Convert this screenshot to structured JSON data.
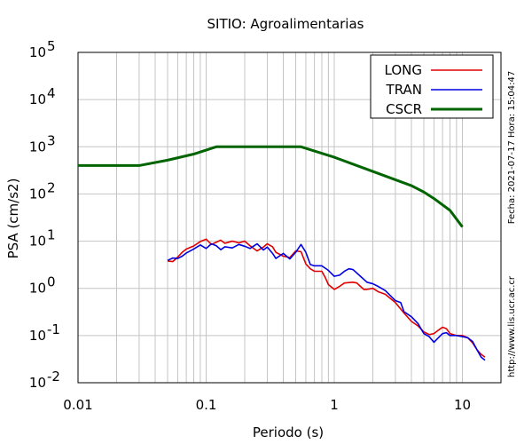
{
  "chart_data": {
    "type": "line",
    "title": "SITIO: Agroalimentarias",
    "xlabel": "Periodo (s)",
    "ylabel": "PSA (cm/s2)",
    "x_scale": "log",
    "y_scale": "log",
    "xlim": [
      0.01,
      20
    ],
    "ylim": [
      0.01,
      100000
    ],
    "x_ticks": [
      0.01,
      0.1,
      1,
      10
    ],
    "x_tick_labels": [
      "0.01",
      "0.1",
      "1",
      "10"
    ],
    "y_ticks": [
      0.01,
      0.1,
      1,
      10,
      100,
      1000,
      10000,
      100000
    ],
    "y_tick_labels": [
      {
        "base": "10",
        "exp": "-2"
      },
      {
        "base": "10",
        "exp": "-1"
      },
      {
        "base": "10",
        "exp": "0"
      },
      {
        "base": "10",
        "exp": "1"
      },
      {
        "base": "10",
        "exp": "2"
      },
      {
        "base": "10",
        "exp": "3"
      },
      {
        "base": "10",
        "exp": "4"
      },
      {
        "base": "10",
        "exp": "5"
      }
    ],
    "grid": true,
    "legend_position": "top-right",
    "series": [
      {
        "name": "LONG",
        "color": "#e00000",
        "points": [
          [
            0.05,
            3.8
          ],
          [
            0.055,
            3.7
          ],
          [
            0.06,
            4.6
          ],
          [
            0.065,
            5.8
          ],
          [
            0.07,
            6.8
          ],
          [
            0.08,
            7.9
          ],
          [
            0.09,
            9.8
          ],
          [
            0.1,
            11.0
          ],
          [
            0.11,
            8.5
          ],
          [
            0.12,
            9.5
          ],
          [
            0.13,
            10.5
          ],
          [
            0.14,
            9.0
          ],
          [
            0.16,
            10.0
          ],
          [
            0.18,
            9.2
          ],
          [
            0.2,
            10.0
          ],
          [
            0.22,
            8.0
          ],
          [
            0.25,
            6.2
          ],
          [
            0.28,
            7.5
          ],
          [
            0.3,
            8.8
          ],
          [
            0.33,
            7.6
          ],
          [
            0.35,
            5.8
          ],
          [
            0.4,
            4.8
          ],
          [
            0.45,
            4.5
          ],
          [
            0.5,
            6.2
          ],
          [
            0.55,
            6.0
          ],
          [
            0.6,
            3.3
          ],
          [
            0.65,
            2.6
          ],
          [
            0.7,
            2.3
          ],
          [
            0.8,
            2.3
          ],
          [
            0.85,
            1.7
          ],
          [
            0.9,
            1.2
          ],
          [
            1.0,
            0.95
          ],
          [
            1.1,
            1.1
          ],
          [
            1.2,
            1.3
          ],
          [
            1.4,
            1.35
          ],
          [
            1.5,
            1.3
          ],
          [
            1.6,
            1.1
          ],
          [
            1.7,
            0.95
          ],
          [
            1.8,
            0.95
          ],
          [
            2.0,
            1.0
          ],
          [
            2.2,
            0.85
          ],
          [
            2.5,
            0.75
          ],
          [
            3.0,
            0.5
          ],
          [
            3.5,
            0.3
          ],
          [
            4.0,
            0.2
          ],
          [
            4.5,
            0.16
          ],
          [
            5.0,
            0.12
          ],
          [
            5.5,
            0.105
          ],
          [
            6.0,
            0.11
          ],
          [
            6.5,
            0.13
          ],
          [
            7.0,
            0.15
          ],
          [
            7.5,
            0.14
          ],
          [
            8.0,
            0.11
          ],
          [
            9.0,
            0.1
          ],
          [
            10.0,
            0.1
          ],
          [
            11.0,
            0.09
          ],
          [
            12.0,
            0.07
          ],
          [
            13.0,
            0.05
          ],
          [
            14.0,
            0.04
          ],
          [
            15.0,
            0.035
          ]
        ]
      },
      {
        "name": "TRAN",
        "color": "#0000e0",
        "points": [
          [
            0.05,
            3.9
          ],
          [
            0.055,
            4.4
          ],
          [
            0.06,
            4.3
          ],
          [
            0.065,
            4.8
          ],
          [
            0.07,
            5.6
          ],
          [
            0.08,
            6.8
          ],
          [
            0.09,
            8.3
          ],
          [
            0.1,
            7.0
          ],
          [
            0.11,
            8.8
          ],
          [
            0.12,
            8.0
          ],
          [
            0.13,
            6.6
          ],
          [
            0.14,
            7.6
          ],
          [
            0.16,
            7.2
          ],
          [
            0.18,
            8.5
          ],
          [
            0.2,
            7.8
          ],
          [
            0.22,
            7.0
          ],
          [
            0.25,
            8.8
          ],
          [
            0.28,
            6.5
          ],
          [
            0.3,
            7.5
          ],
          [
            0.33,
            5.5
          ],
          [
            0.35,
            4.3
          ],
          [
            0.4,
            5.5
          ],
          [
            0.45,
            4.2
          ],
          [
            0.5,
            5.8
          ],
          [
            0.55,
            8.5
          ],
          [
            0.6,
            5.8
          ],
          [
            0.65,
            3.2
          ],
          [
            0.7,
            3.0
          ],
          [
            0.8,
            3.0
          ],
          [
            0.9,
            2.4
          ],
          [
            1.0,
            1.8
          ],
          [
            1.1,
            1.9
          ],
          [
            1.2,
            2.3
          ],
          [
            1.3,
            2.6
          ],
          [
            1.4,
            2.5
          ],
          [
            1.6,
            1.8
          ],
          [
            1.8,
            1.35
          ],
          [
            2.0,
            1.25
          ],
          [
            2.2,
            1.1
          ],
          [
            2.5,
            0.9
          ],
          [
            3.0,
            0.55
          ],
          [
            3.3,
            0.5
          ],
          [
            3.5,
            0.32
          ],
          [
            4.0,
            0.25
          ],
          [
            4.5,
            0.18
          ],
          [
            5.0,
            0.11
          ],
          [
            5.5,
            0.095
          ],
          [
            6.0,
            0.072
          ],
          [
            6.5,
            0.09
          ],
          [
            7.0,
            0.11
          ],
          [
            7.5,
            0.115
          ],
          [
            8.0,
            0.1
          ],
          [
            9.0,
            0.1
          ],
          [
            10.0,
            0.095
          ],
          [
            11.0,
            0.09
          ],
          [
            12.0,
            0.075
          ],
          [
            13.0,
            0.05
          ],
          [
            14.0,
            0.035
          ],
          [
            15.0,
            0.03
          ]
        ]
      },
      {
        "name": "CSCR",
        "color": "#006400",
        "points": [
          [
            0.01,
            400
          ],
          [
            0.03,
            400
          ],
          [
            0.05,
            520
          ],
          [
            0.08,
            700
          ],
          [
            0.12,
            1000
          ],
          [
            0.55,
            1000
          ],
          [
            1.0,
            600
          ],
          [
            1.5,
            400
          ],
          [
            2.0,
            300
          ],
          [
            3.0,
            200
          ],
          [
            4.0,
            150
          ],
          [
            5.0,
            110
          ],
          [
            6.0,
            80
          ],
          [
            8.0,
            45
          ],
          [
            10.0,
            20
          ]
        ]
      }
    ]
  },
  "side_text": {
    "date_time": "Fecha: 2021-07-17 Hora: 15:04:47",
    "url": "http://www.lis.ucr.ac.cr"
  }
}
